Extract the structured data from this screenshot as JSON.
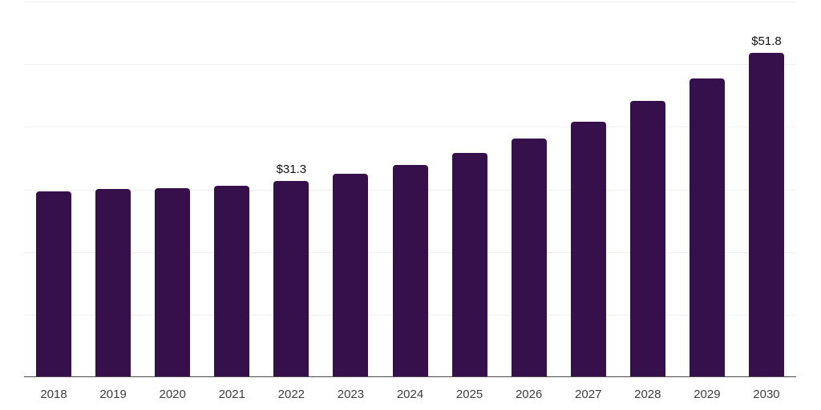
{
  "chart_data": {
    "type": "bar",
    "title": "",
    "xlabel": "",
    "ylabel": "",
    "categories": [
      "2018",
      "2019",
      "2020",
      "2021",
      "2022",
      "2023",
      "2024",
      "2025",
      "2026",
      "2027",
      "2028",
      "2029",
      "2030"
    ],
    "values": [
      29.7,
      30.1,
      30.2,
      30.6,
      31.3,
      32.5,
      33.9,
      35.8,
      38.1,
      40.8,
      44.1,
      47.7,
      51.8
    ],
    "bar_labels": {
      "2022": "$31.3",
      "2030": "$51.8"
    },
    "ylim": [
      0,
      60
    ],
    "gridline_step": 10,
    "grid": true,
    "legend": "none",
    "colors": {
      "bar": "#36104A",
      "gridline": "#efefef",
      "axis_line": "#4a4a4a",
      "tick_label": "#3d3d3d",
      "value_label": "#111111",
      "background": "#ffffff"
    }
  }
}
